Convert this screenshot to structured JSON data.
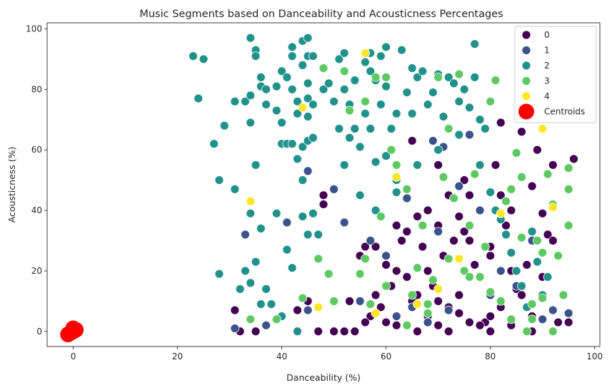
{
  "chart_data": {
    "type": "scatter",
    "title": "Music Segments based on Danceability and Acousticness Percentages",
    "xlabel": "Danceability (%)",
    "ylabel": "Acousticness (%)",
    "xlim": [
      -5,
      101
    ],
    "ylim": [
      -5,
      102
    ],
    "xticks": [
      0,
      20,
      40,
      60,
      80,
      100
    ],
    "yticks": [
      0,
      20,
      40,
      60,
      80,
      100
    ],
    "grid": false,
    "legend_position": "top-right",
    "series": [
      {
        "name": "0",
        "color": "#440154",
        "points": [
          [
            31,
            7
          ],
          [
            32,
            0
          ],
          [
            35,
            0
          ],
          [
            43,
            7
          ],
          [
            45,
            10
          ],
          [
            47,
            0
          ],
          [
            48,
            42
          ],
          [
            48,
            45
          ],
          [
            50,
            0
          ],
          [
            52,
            0
          ],
          [
            53,
            10
          ],
          [
            54,
            0
          ],
          [
            55,
            25
          ],
          [
            56,
            28
          ],
          [
            57,
            5
          ],
          [
            58,
            12
          ],
          [
            59,
            8
          ],
          [
            60,
            3
          ],
          [
            61,
            15
          ],
          [
            62,
            20
          ],
          [
            63,
            30
          ],
          [
            64,
            33
          ],
          [
            65,
            10
          ],
          [
            66,
            38
          ],
          [
            67,
            28
          ],
          [
            68,
            20
          ],
          [
            69,
            15
          ],
          [
            70,
            35
          ],
          [
            71,
            25
          ],
          [
            72,
            8
          ],
          [
            73,
            30
          ],
          [
            74,
            12
          ],
          [
            75,
            33
          ],
          [
            76,
            45
          ],
          [
            77,
            22
          ],
          [
            78,
            18
          ],
          [
            79,
            3
          ],
          [
            80,
            28
          ],
          [
            81,
            55
          ],
          [
            82,
            69
          ],
          [
            83,
            35
          ],
          [
            84,
            40
          ],
          [
            85,
            14
          ],
          [
            86,
            66
          ],
          [
            87,
            22
          ],
          [
            88,
            48
          ],
          [
            89,
            60
          ],
          [
            90,
            39
          ],
          [
            91,
            32
          ],
          [
            92,
            55
          ],
          [
            93,
            3
          ],
          [
            96,
            57
          ],
          [
            95,
            3
          ],
          [
            65,
            63
          ],
          [
            70,
            55
          ],
          [
            75,
            50
          ],
          [
            80,
            5
          ],
          [
            85,
            15
          ],
          [
            72,
            45
          ],
          [
            68,
            40
          ],
          [
            62,
            35
          ],
          [
            58,
            28
          ],
          [
            60,
            22
          ],
          [
            64,
            18
          ],
          [
            66,
            12
          ],
          [
            70,
            10
          ],
          [
            74,
            6
          ],
          [
            78,
            2
          ],
          [
            82,
            8
          ],
          [
            86,
            12
          ],
          [
            88,
            5
          ],
          [
            90,
            18
          ],
          [
            92,
            30
          ],
          [
            76,
            30
          ],
          [
            80,
            25
          ],
          [
            84,
            20
          ],
          [
            66,
            0
          ],
          [
            70,
            2
          ],
          [
            56,
            3
          ],
          [
            62,
            2
          ],
          [
            68,
            5
          ],
          [
            72,
            0
          ],
          [
            76,
            3
          ],
          [
            80,
            0
          ],
          [
            84,
            2
          ],
          [
            88,
            0
          ],
          [
            74,
            38
          ],
          [
            82,
            45
          ]
        ]
      },
      {
        "name": "1",
        "color": "#3b528b",
        "points": [
          [
            31,
            1
          ],
          [
            33,
            32
          ],
          [
            37,
            2
          ],
          [
            41,
            36
          ],
          [
            43,
            0
          ],
          [
            45,
            53
          ],
          [
            45,
            7
          ],
          [
            50,
            47
          ],
          [
            52,
            36
          ],
          [
            55,
            10
          ],
          [
            57,
            30
          ],
          [
            60,
            25
          ],
          [
            62,
            5
          ],
          [
            65,
            8
          ],
          [
            68,
            3
          ],
          [
            70,
            33
          ],
          [
            72,
            7
          ],
          [
            76,
            65
          ],
          [
            78,
            40
          ],
          [
            80,
            12
          ],
          [
            82,
            20
          ],
          [
            85,
            15
          ],
          [
            88,
            30
          ],
          [
            90,
            4
          ],
          [
            92,
            7
          ],
          [
            95,
            6
          ],
          [
            71,
            61
          ],
          [
            69,
            63
          ],
          [
            74,
            48
          ],
          [
            64,
            44
          ]
        ]
      },
      {
        "name": "2",
        "color": "#21918c",
        "points": [
          [
            23,
            91
          ],
          [
            24,
            77
          ],
          [
            25,
            90
          ],
          [
            27,
            62
          ],
          [
            28,
            50
          ],
          [
            28,
            19
          ],
          [
            29,
            68
          ],
          [
            31,
            76
          ],
          [
            31,
            47
          ],
          [
            32,
            14
          ],
          [
            33,
            76
          ],
          [
            33,
            20
          ],
          [
            34,
            97
          ],
          [
            34,
            78
          ],
          [
            34,
            69
          ],
          [
            34,
            39
          ],
          [
            34,
            16
          ],
          [
            35,
            93
          ],
          [
            35,
            91
          ],
          [
            35,
            55
          ],
          [
            35,
            23
          ],
          [
            36,
            84
          ],
          [
            36,
            81
          ],
          [
            36,
            34
          ],
          [
            36,
            9
          ],
          [
            37,
            80
          ],
          [
            37,
            75
          ],
          [
            37,
            14
          ],
          [
            38,
            9
          ],
          [
            39,
            73
          ],
          [
            39,
            81
          ],
          [
            39,
            39
          ],
          [
            40,
            86
          ],
          [
            40,
            69
          ],
          [
            40,
            62
          ],
          [
            40,
            5
          ],
          [
            41,
            84
          ],
          [
            41,
            62
          ],
          [
            41,
            27
          ],
          [
            42,
            94
          ],
          [
            42,
            91
          ],
          [
            42,
            80
          ],
          [
            42,
            62
          ],
          [
            42,
            21
          ],
          [
            43,
            76
          ],
          [
            43,
            72
          ],
          [
            43,
            57
          ],
          [
            43,
            0
          ],
          [
            44,
            96
          ],
          [
            44,
            88
          ],
          [
            44,
            61
          ],
          [
            44,
            50
          ],
          [
            44,
            38
          ],
          [
            45,
            97
          ],
          [
            45,
            91
          ],
          [
            45,
            82
          ],
          [
            45,
            77
          ],
          [
            45,
            71
          ],
          [
            45,
            63
          ],
          [
            45,
            32
          ],
          [
            46,
            91
          ],
          [
            46,
            75
          ],
          [
            46,
            64
          ],
          [
            46,
            39
          ],
          [
            47,
            32
          ],
          [
            48,
            80
          ],
          [
            49,
            82
          ],
          [
            50,
            76
          ],
          [
            51,
            90
          ],
          [
            51,
            67
          ],
          [
            52,
            92
          ],
          [
            52,
            80
          ],
          [
            52,
            55
          ],
          [
            53,
            75
          ],
          [
            53,
            64
          ],
          [
            54,
            83
          ],
          [
            54,
            67
          ],
          [
            55,
            61
          ],
          [
            56,
            89
          ],
          [
            56,
            72
          ],
          [
            57,
            92
          ],
          [
            57,
            86
          ],
          [
            57,
            67
          ],
          [
            58,
            83
          ],
          [
            58,
            56
          ],
          [
            59,
            91
          ],
          [
            59,
            75
          ],
          [
            60,
            94
          ],
          [
            60,
            81
          ],
          [
            60,
            58
          ],
          [
            61,
            67
          ],
          [
            62,
            72
          ],
          [
            62,
            46
          ],
          [
            63,
            93
          ],
          [
            64,
            79
          ],
          [
            65,
            87
          ],
          [
            65,
            72
          ],
          [
            66,
            84
          ],
          [
            67,
            86
          ],
          [
            68,
            75
          ],
          [
            69,
            79
          ],
          [
            70,
            85
          ],
          [
            71,
            71
          ],
          [
            72,
            84
          ],
          [
            73,
            82
          ],
          [
            74,
            76
          ],
          [
            75,
            80
          ],
          [
            76,
            74
          ],
          [
            77,
            95
          ],
          [
            77,
            84
          ],
          [
            78,
            55
          ],
          [
            79,
            67
          ],
          [
            80,
            46
          ],
          [
            81,
            40
          ],
          [
            82,
            37
          ],
          [
            83,
            32
          ],
          [
            84,
            26
          ],
          [
            85,
            20
          ],
          [
            86,
            15
          ],
          [
            87,
            8
          ],
          [
            88,
            33
          ],
          [
            89,
            23
          ],
          [
            90,
            12
          ],
          [
            91,
            18
          ],
          [
            55,
            45
          ],
          [
            58,
            40
          ],
          [
            62,
            50
          ],
          [
            66,
            55
          ],
          [
            70,
            60
          ],
          [
            74,
            65
          ],
          [
            78,
            70
          ]
        ]
      },
      {
        "name": "3",
        "color": "#5ec962",
        "points": [
          [
            34,
            4
          ],
          [
            39,
            4
          ],
          [
            44,
            11
          ],
          [
            47,
            24
          ],
          [
            48,
            87
          ],
          [
            49,
            19
          ],
          [
            50,
            10
          ],
          [
            52,
            86
          ],
          [
            53,
            73
          ],
          [
            55,
            19
          ],
          [
            56,
            76
          ],
          [
            57,
            9
          ],
          [
            58,
            84
          ],
          [
            59,
            38
          ],
          [
            60,
            84
          ],
          [
            61,
            60
          ],
          [
            62,
            55
          ],
          [
            64,
            47
          ],
          [
            65,
            12
          ],
          [
            66,
            21
          ],
          [
            67,
            35
          ],
          [
            68,
            6
          ],
          [
            69,
            17
          ],
          [
            70,
            84
          ],
          [
            71,
            51
          ],
          [
            72,
            67
          ],
          [
            73,
            44
          ],
          [
            74,
            85
          ],
          [
            75,
            20
          ],
          [
            76,
            35
          ],
          [
            77,
            52
          ],
          [
            78,
            18
          ],
          [
            79,
            28
          ],
          [
            80,
            76
          ],
          [
            81,
            83
          ],
          [
            82,
            10
          ],
          [
            83,
            43
          ],
          [
            84,
            4
          ],
          [
            85,
            59
          ],
          [
            86,
            31
          ],
          [
            87,
            0
          ],
          [
            88,
            9
          ],
          [
            89,
            30
          ],
          [
            90,
            26
          ],
          [
            91,
            52
          ],
          [
            92,
            42
          ],
          [
            93,
            25
          ],
          [
            94,
            12
          ],
          [
            95,
            35
          ],
          [
            95,
            47
          ],
          [
            95,
            54
          ],
          [
            92,
            0
          ],
          [
            90,
            11
          ],
          [
            88,
            4
          ],
          [
            86,
            51
          ],
          [
            84,
            47
          ],
          [
            80,
            13
          ],
          [
            76,
            18
          ],
          [
            72,
            24
          ],
          [
            68,
            9
          ],
          [
            64,
            2
          ],
          [
            60,
            15
          ],
          [
            56,
            24
          ]
        ]
      },
      {
        "name": "4",
        "color": "#fde725",
        "points": [
          [
            34,
            43
          ],
          [
            44,
            74
          ],
          [
            47,
            8
          ],
          [
            56,
            92
          ],
          [
            62,
            51
          ],
          [
            70,
            14
          ],
          [
            74,
            24
          ],
          [
            82,
            39
          ],
          [
            90,
            67
          ],
          [
            92,
            41
          ],
          [
            66,
            9
          ],
          [
            58,
            6
          ]
        ]
      }
    ],
    "centroids": {
      "name": "Centroids",
      "color": "#ff0000",
      "points": [
        [
          -1,
          -1
        ],
        [
          0,
          0
        ],
        [
          0.5,
          0.5
        ],
        [
          -0.5,
          -0.5
        ],
        [
          0,
          1
        ]
      ]
    }
  }
}
